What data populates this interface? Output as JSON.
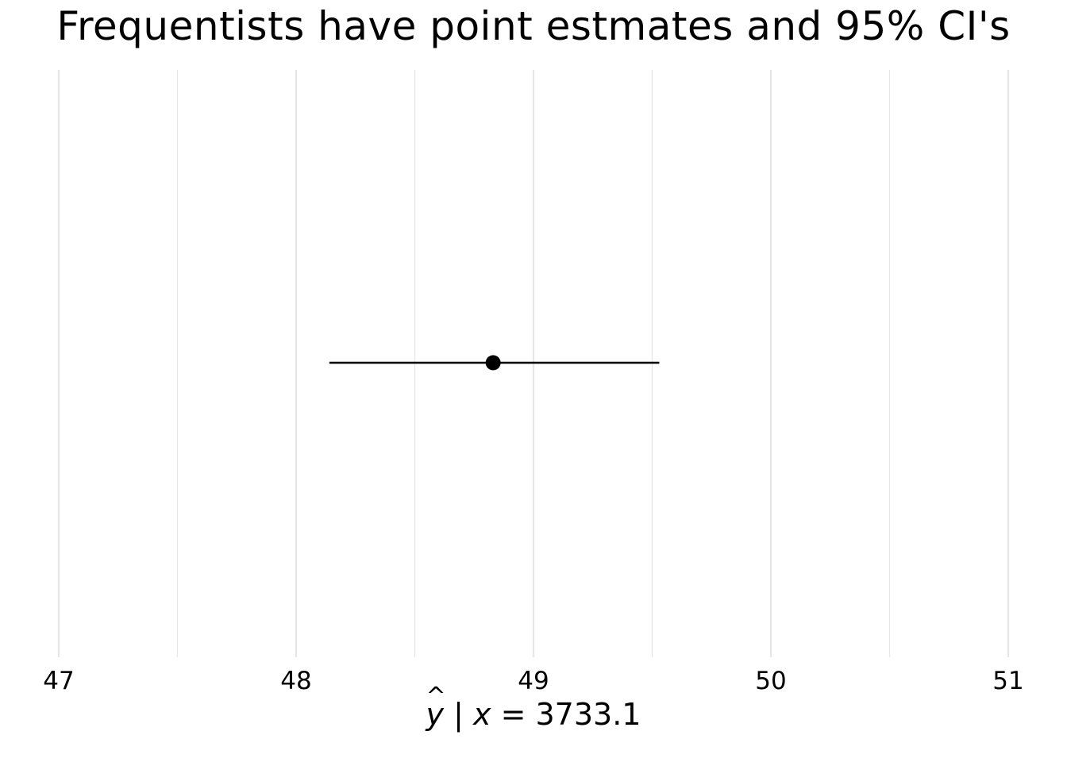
{
  "chart_data": {
    "type": "scatter",
    "title": "Frequentists have point estmates and 95% CI's",
    "xlabel": {
      "variable": "y",
      "separator": " | ",
      "condition_var": "x",
      "condition_rest": " = 3733.1"
    },
    "ylabel": "",
    "xlim": [
      47,
      51
    ],
    "x_major_ticks": [
      47,
      48,
      49,
      50,
      51
    ],
    "x_minor_ticks": [
      47.5,
      48.5,
      49.5,
      50.5
    ],
    "grid": true,
    "point_estimate": 48.83,
    "ci_lower": 48.14,
    "ci_upper": 49.53,
    "colors": {
      "mark": "#000000",
      "grid": "#e6e6e6",
      "background": "#ffffff"
    }
  }
}
